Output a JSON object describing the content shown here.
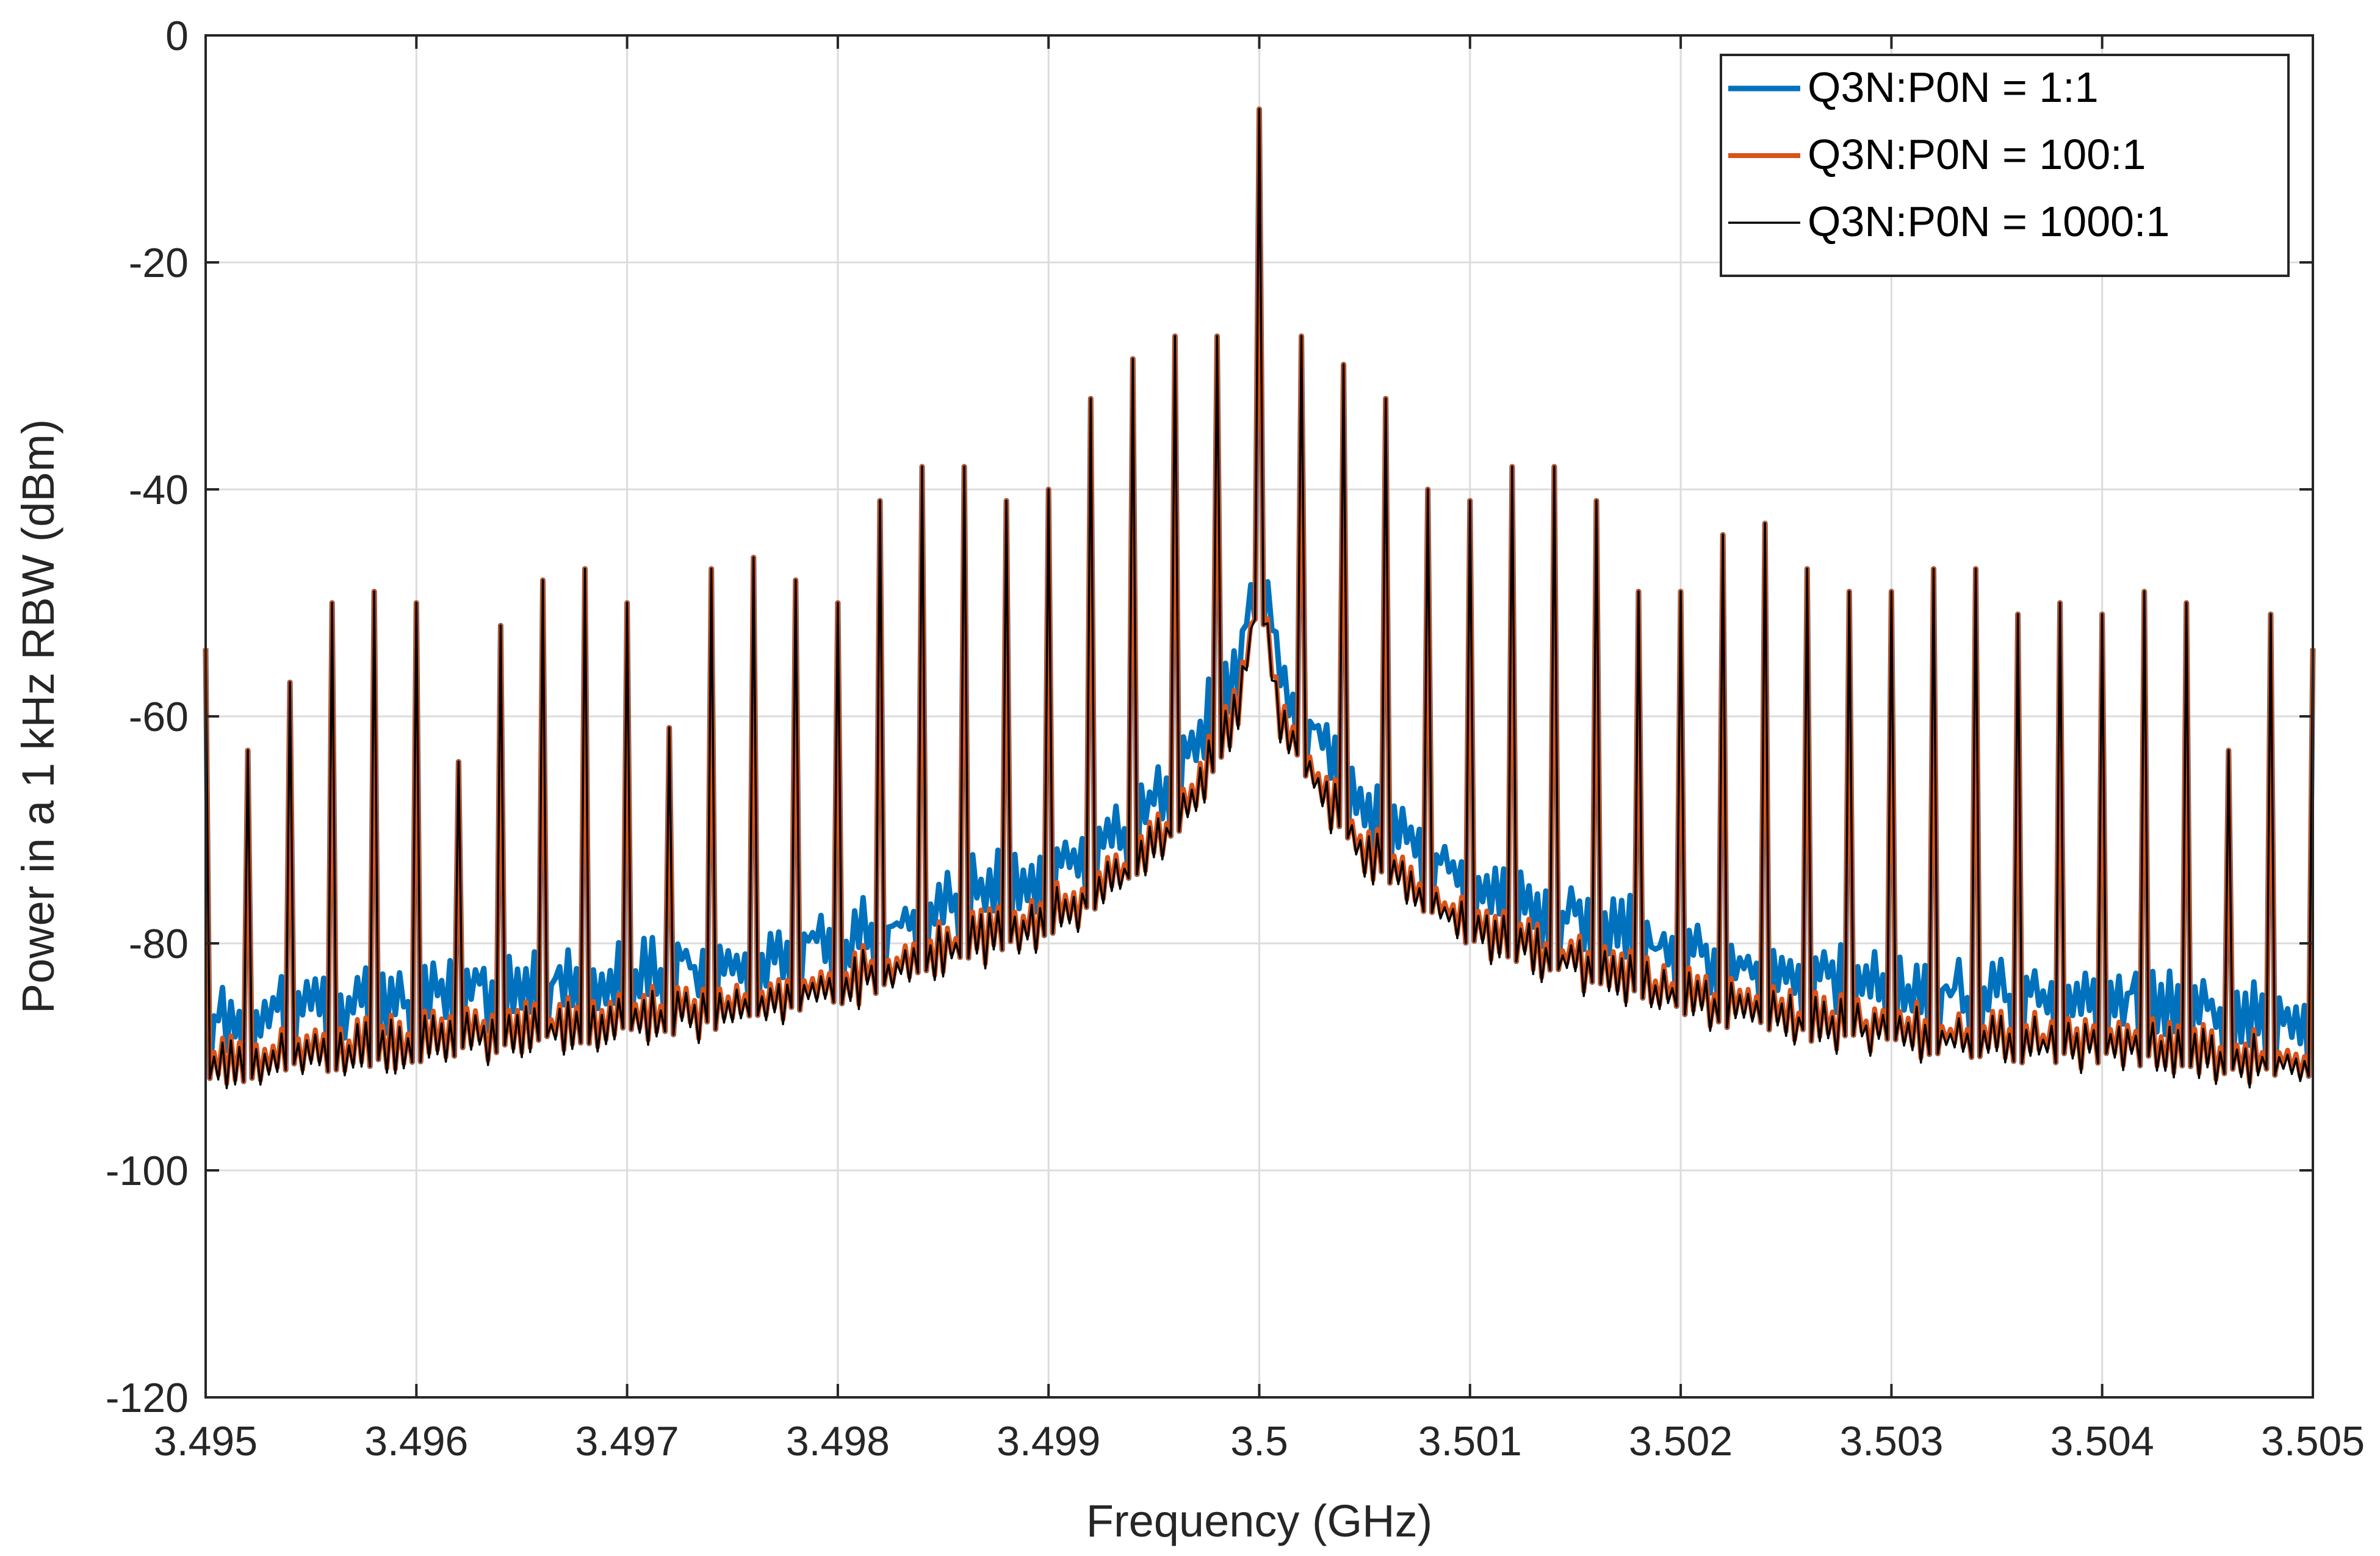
{
  "chart_data": {
    "type": "line",
    "title": "",
    "xlabel": "Frequency (GHz)",
    "ylabel": "Power in a 1 kHz RBW (dBm)",
    "xlim": [
      3.495,
      3.505
    ],
    "ylim": [
      -120,
      0
    ],
    "x_ticks": [
      3.495,
      3.496,
      3.497,
      3.498,
      3.499,
      3.5,
      3.501,
      3.502,
      3.503,
      3.504,
      3.505
    ],
    "x_tick_labels": [
      "3.495",
      "3.496",
      "3.497",
      "3.498",
      "3.499",
      "3.5",
      "3.501",
      "3.502",
      "3.503",
      "3.504",
      "3.505"
    ],
    "y_ticks": [
      0,
      -20,
      -40,
      -60,
      -80,
      -100,
      -120
    ],
    "y_tick_labels": [
      "0",
      "-20",
      "-40",
      "-60",
      "-80",
      "-100",
      "-120"
    ],
    "grid": true,
    "legend_position": "top-right",
    "carrier": {
      "x": 3.5,
      "y": -6.5
    },
    "spur_spacing": 0.0002,
    "spur_peaks": {
      "x": [
        3.495,
        3.4952,
        3.4954,
        3.4956,
        3.4958,
        3.496,
        3.4962,
        3.4964,
        3.4966,
        3.4968,
        3.497,
        3.4972,
        3.4974,
        3.4976,
        3.4978,
        3.498,
        3.4982,
        3.4984,
        3.4986,
        3.4988,
        3.499,
        3.4992,
        3.4994,
        3.4996,
        3.4998,
        3.5002,
        3.5004,
        3.5006,
        3.5008,
        3.501,
        3.5012,
        3.5014,
        3.5016,
        3.5018,
        3.502,
        3.5022,
        3.5024,
        3.5026,
        3.5028,
        3.503,
        3.5032,
        3.5034,
        3.5036,
        3.5038,
        3.504,
        3.5042,
        3.5044,
        3.5046,
        3.5048,
        3.505
      ],
      "y": [
        -54,
        -63,
        -57,
        -50,
        -49,
        -50,
        -64,
        -52,
        -48,
        -47,
        -50,
        -61,
        -47,
        -46,
        -48,
        -50,
        -41,
        -38,
        -38,
        -41,
        -40,
        -32,
        -28.5,
        -26.5,
        -26.5,
        -26.5,
        -29,
        -32,
        -40,
        -41,
        -38,
        -38,
        -41,
        -49,
        -49,
        -44,
        -43,
        -47,
        -49,
        -49,
        -47,
        -47,
        -51,
        -50,
        -51,
        -49,
        -50,
        -63,
        -51,
        -54
      ]
    },
    "floor": {
      "x": [
        3.495,
        3.4955,
        3.496,
        3.4965,
        3.497,
        3.4975,
        3.498,
        3.4985,
        3.499,
        3.4993,
        3.4995,
        3.4997,
        3.4999,
        3.5,
        3.5001,
        3.5003,
        3.5005,
        3.5007,
        3.501,
        3.5015,
        3.502,
        3.5025,
        3.503,
        3.5035,
        3.504,
        3.5045,
        3.505
      ],
      "y": [
        -91,
        -90,
        -89,
        -88,
        -87,
        -86,
        -84,
        -81,
        -78,
        -75,
        -72,
        -67,
        -59,
        -49,
        -60,
        -67,
        -72,
        -75,
        -79,
        -82,
        -85,
        -87,
        -88,
        -89,
        -89,
        -90,
        -91
      ]
    },
    "series": [
      {
        "name": "Q3N:P0N = 1:1",
        "color": "#0072BD",
        "floor_offset_db": 3.0
      },
      {
        "name": "Q3N:P0N = 100:1",
        "color": "#D95319",
        "floor_offset_db": 0.4
      },
      {
        "name": "Q3N:P0N = 1000:1",
        "color": "#000000",
        "floor_offset_db": 0.0
      }
    ]
  }
}
